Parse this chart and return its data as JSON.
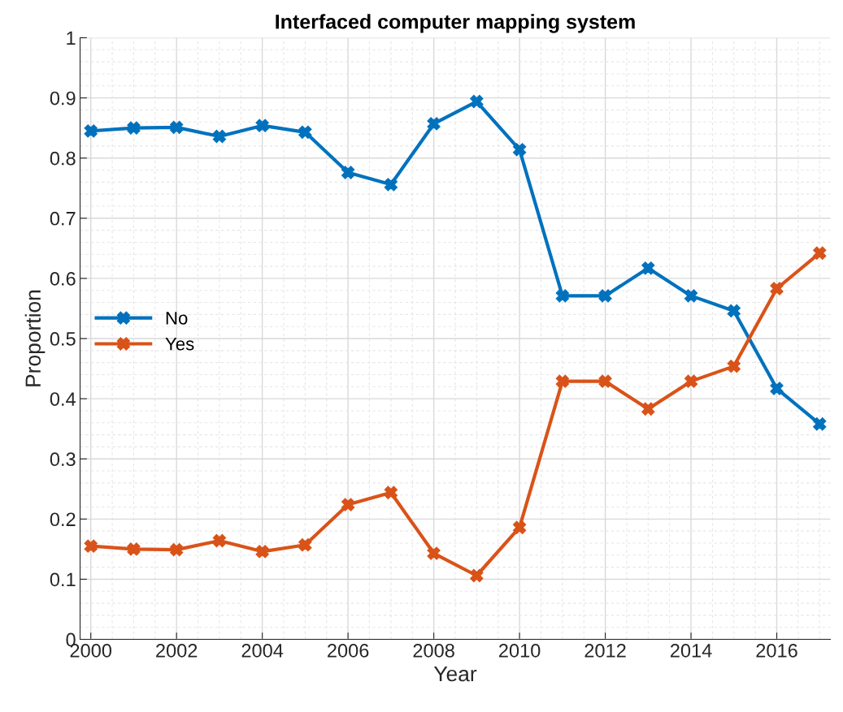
{
  "chart_data": {
    "type": "line",
    "title": "Interfaced computer mapping system",
    "xlabel": "Year",
    "ylabel": "Proportion",
    "x": [
      2000,
      2001,
      2002,
      2003,
      2004,
      2005,
      2006,
      2007,
      2008,
      2009,
      2010,
      2011,
      2012,
      2013,
      2014,
      2015,
      2016,
      2017
    ],
    "series": [
      {
        "name": "No",
        "color": "#0072bd",
        "values": [
          0.845,
          0.85,
          0.851,
          0.836,
          0.854,
          0.843,
          0.776,
          0.756,
          0.857,
          0.894,
          0.814,
          0.571,
          0.571,
          0.617,
          0.571,
          0.546,
          0.417,
          0.358
        ]
      },
      {
        "name": "Yes",
        "color": "#d95319",
        "values": [
          0.155,
          0.15,
          0.149,
          0.164,
          0.146,
          0.157,
          0.224,
          0.244,
          0.143,
          0.106,
          0.186,
          0.429,
          0.429,
          0.383,
          0.429,
          0.454,
          0.583,
          0.642
        ]
      }
    ],
    "xlim": [
      1999.75,
      2017.25
    ],
    "xticks": [
      2000,
      2002,
      2004,
      2006,
      2008,
      2010,
      2012,
      2014,
      2016
    ],
    "ylim": [
      0,
      1
    ],
    "yticks": [
      0,
      0.1,
      0.2,
      0.3,
      0.4,
      0.5,
      0.6,
      0.7,
      0.8,
      0.9,
      1
    ],
    "grid": true,
    "legend": "left",
    "marker": "cross",
    "line_style": "solid"
  }
}
